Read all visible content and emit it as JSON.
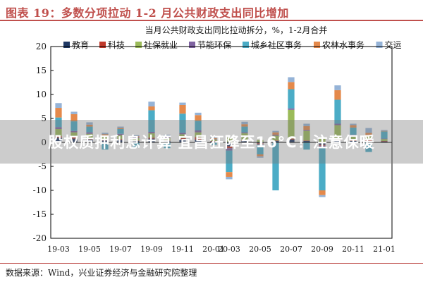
{
  "figure_title": "图表 19：多数分项拉动 1-2 月公共财政支出同比增加",
  "source": "数据来源：Wind，兴业证券经济与金融研究院整理",
  "overlay_text": "股权质押利息计算 宜昌狂降至16°C！注意保暖",
  "chart_data": {
    "type": "bar",
    "stacked": true,
    "title": "当月公共财政支出同比拉动拆分，%，1-2月合并",
    "ylim": [
      -20,
      20
    ],
    "yticks": [
      -20,
      -15,
      -10,
      -5,
      0,
      5,
      10,
      15,
      20
    ],
    "grid": false,
    "legend_position": "top",
    "categories": [
      "19-03",
      "19-04",
      "19-05",
      "19-06",
      "19-07",
      "19-08",
      "19-09",
      "19-10",
      "19-11",
      "19-12",
      "20-01",
      "20-03",
      "20-04",
      "20-05",
      "20-06",
      "20-07",
      "20-08",
      "20-09",
      "20-10",
      "20-11",
      "20-12",
      "21-01"
    ],
    "xtick_labels": [
      "19-03",
      "19-05",
      "19-07",
      "19-09",
      "19-11",
      "20-01",
      "20-03",
      "20-05",
      "20-07",
      "20-09",
      "20-11",
      "21-01"
    ],
    "series": [
      {
        "name": "教育",
        "color": "#1f3864",
        "values": [
          1.0,
          0.8,
          0.6,
          0.4,
          0.5,
          0.3,
          0.8,
          0.3,
          0.6,
          0.6,
          0.2,
          -0.8,
          0.3,
          -0.2,
          0.3,
          0.6,
          0.3,
          -0.5,
          0.4,
          0.3,
          0.3,
          0.2
        ]
      },
      {
        "name": "科技",
        "color": "#c0392b",
        "values": [
          0.3,
          0.3,
          0.2,
          0.2,
          0.2,
          0.1,
          0.2,
          0.1,
          0.3,
          0.5,
          0.1,
          -0.4,
          0.1,
          -0.2,
          0.1,
          0.2,
          0.1,
          -0.2,
          0.2,
          0.1,
          0.2,
          0.1
        ]
      },
      {
        "name": "社保就业",
        "color": "#9bbb59",
        "values": [
          1.5,
          1.0,
          1.0,
          0.6,
          0.8,
          0.5,
          0.9,
          0.5,
          0.8,
          1.0,
          0.3,
          1.0,
          1.5,
          0.5,
          1.0,
          6.0,
          2.0,
          1.0,
          3.0,
          1.0,
          0.8,
          0.4
        ]
      },
      {
        "name": "节能环保",
        "color": "#7f63a1",
        "values": [
          0.4,
          0.3,
          0.3,
          0.2,
          0.3,
          0.2,
          0.3,
          0.2,
          0.3,
          0.4,
          0.1,
          -0.5,
          0.2,
          -0.1,
          0.2,
          0.3,
          0.2,
          -0.3,
          0.3,
          0.2,
          0.2,
          0.1
        ]
      },
      {
        "name": "城乡社区事务",
        "color": "#4bacc6",
        "values": [
          2.0,
          2.0,
          1.2,
          -1.5,
          1.0,
          -1.0,
          4.5,
          -1.2,
          4.0,
          2.0,
          -0.5,
          -4.5,
          1.2,
          -2.0,
          -10.0,
          4.0,
          -1.5,
          -9.0,
          5.0,
          1.5,
          -2.0,
          1.5
        ]
      },
      {
        "name": "农林水事务",
        "color": "#e4894b",
        "values": [
          2.0,
          1.5,
          0.4,
          0.3,
          0.2,
          0.2,
          0.8,
          0.2,
          1.8,
          1.2,
          0.2,
          -1.0,
          0.5,
          -0.4,
          0.5,
          1.5,
          0.8,
          -1.0,
          2.0,
          0.5,
          0.5,
          0.1
        ]
      },
      {
        "name": "交运",
        "color": "#95b3d7",
        "values": [
          1.0,
          0.5,
          0.5,
          0.3,
          0.3,
          0.2,
          1.0,
          0.3,
          0.5,
          0.5,
          0.2,
          -0.5,
          0.5,
          -0.3,
          0.3,
          1.0,
          0.5,
          -0.4,
          1.0,
          0.3,
          1.0,
          0.2
        ]
      }
    ]
  }
}
